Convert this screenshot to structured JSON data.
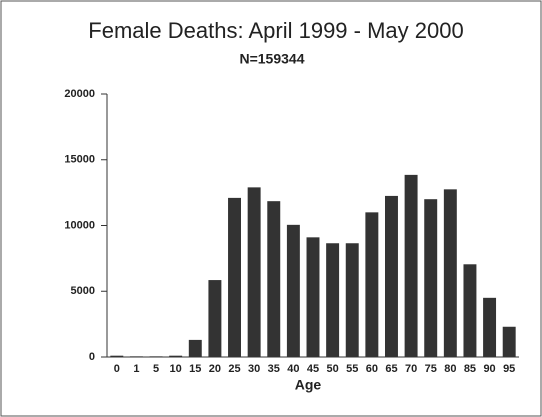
{
  "chart_data": {
    "type": "bar",
    "title": "Female Deaths:  April 1999 - May 2000",
    "subtitle": "N=159344",
    "x_label": "Age",
    "categories": [
      "0",
      "1",
      "5",
      "10",
      "15",
      "20",
      "25",
      "30",
      "35",
      "40",
      "45",
      "50",
      "55",
      "60",
      "65",
      "70",
      "75",
      "80",
      "85",
      "90",
      "95"
    ],
    "values": [
      100,
      50,
      50,
      100,
      1300,
      5850,
      12100,
      12900,
      11850,
      10050,
      9100,
      8650,
      8650,
      11000,
      12250,
      13850,
      12000,
      12750,
      7050,
      4500,
      2300
    ],
    "color": "#333333",
    "ylim": [
      0,
      20000
    ],
    "yticks": [
      0,
      5000,
      10000,
      15000,
      20000
    ],
    "grid": false
  }
}
